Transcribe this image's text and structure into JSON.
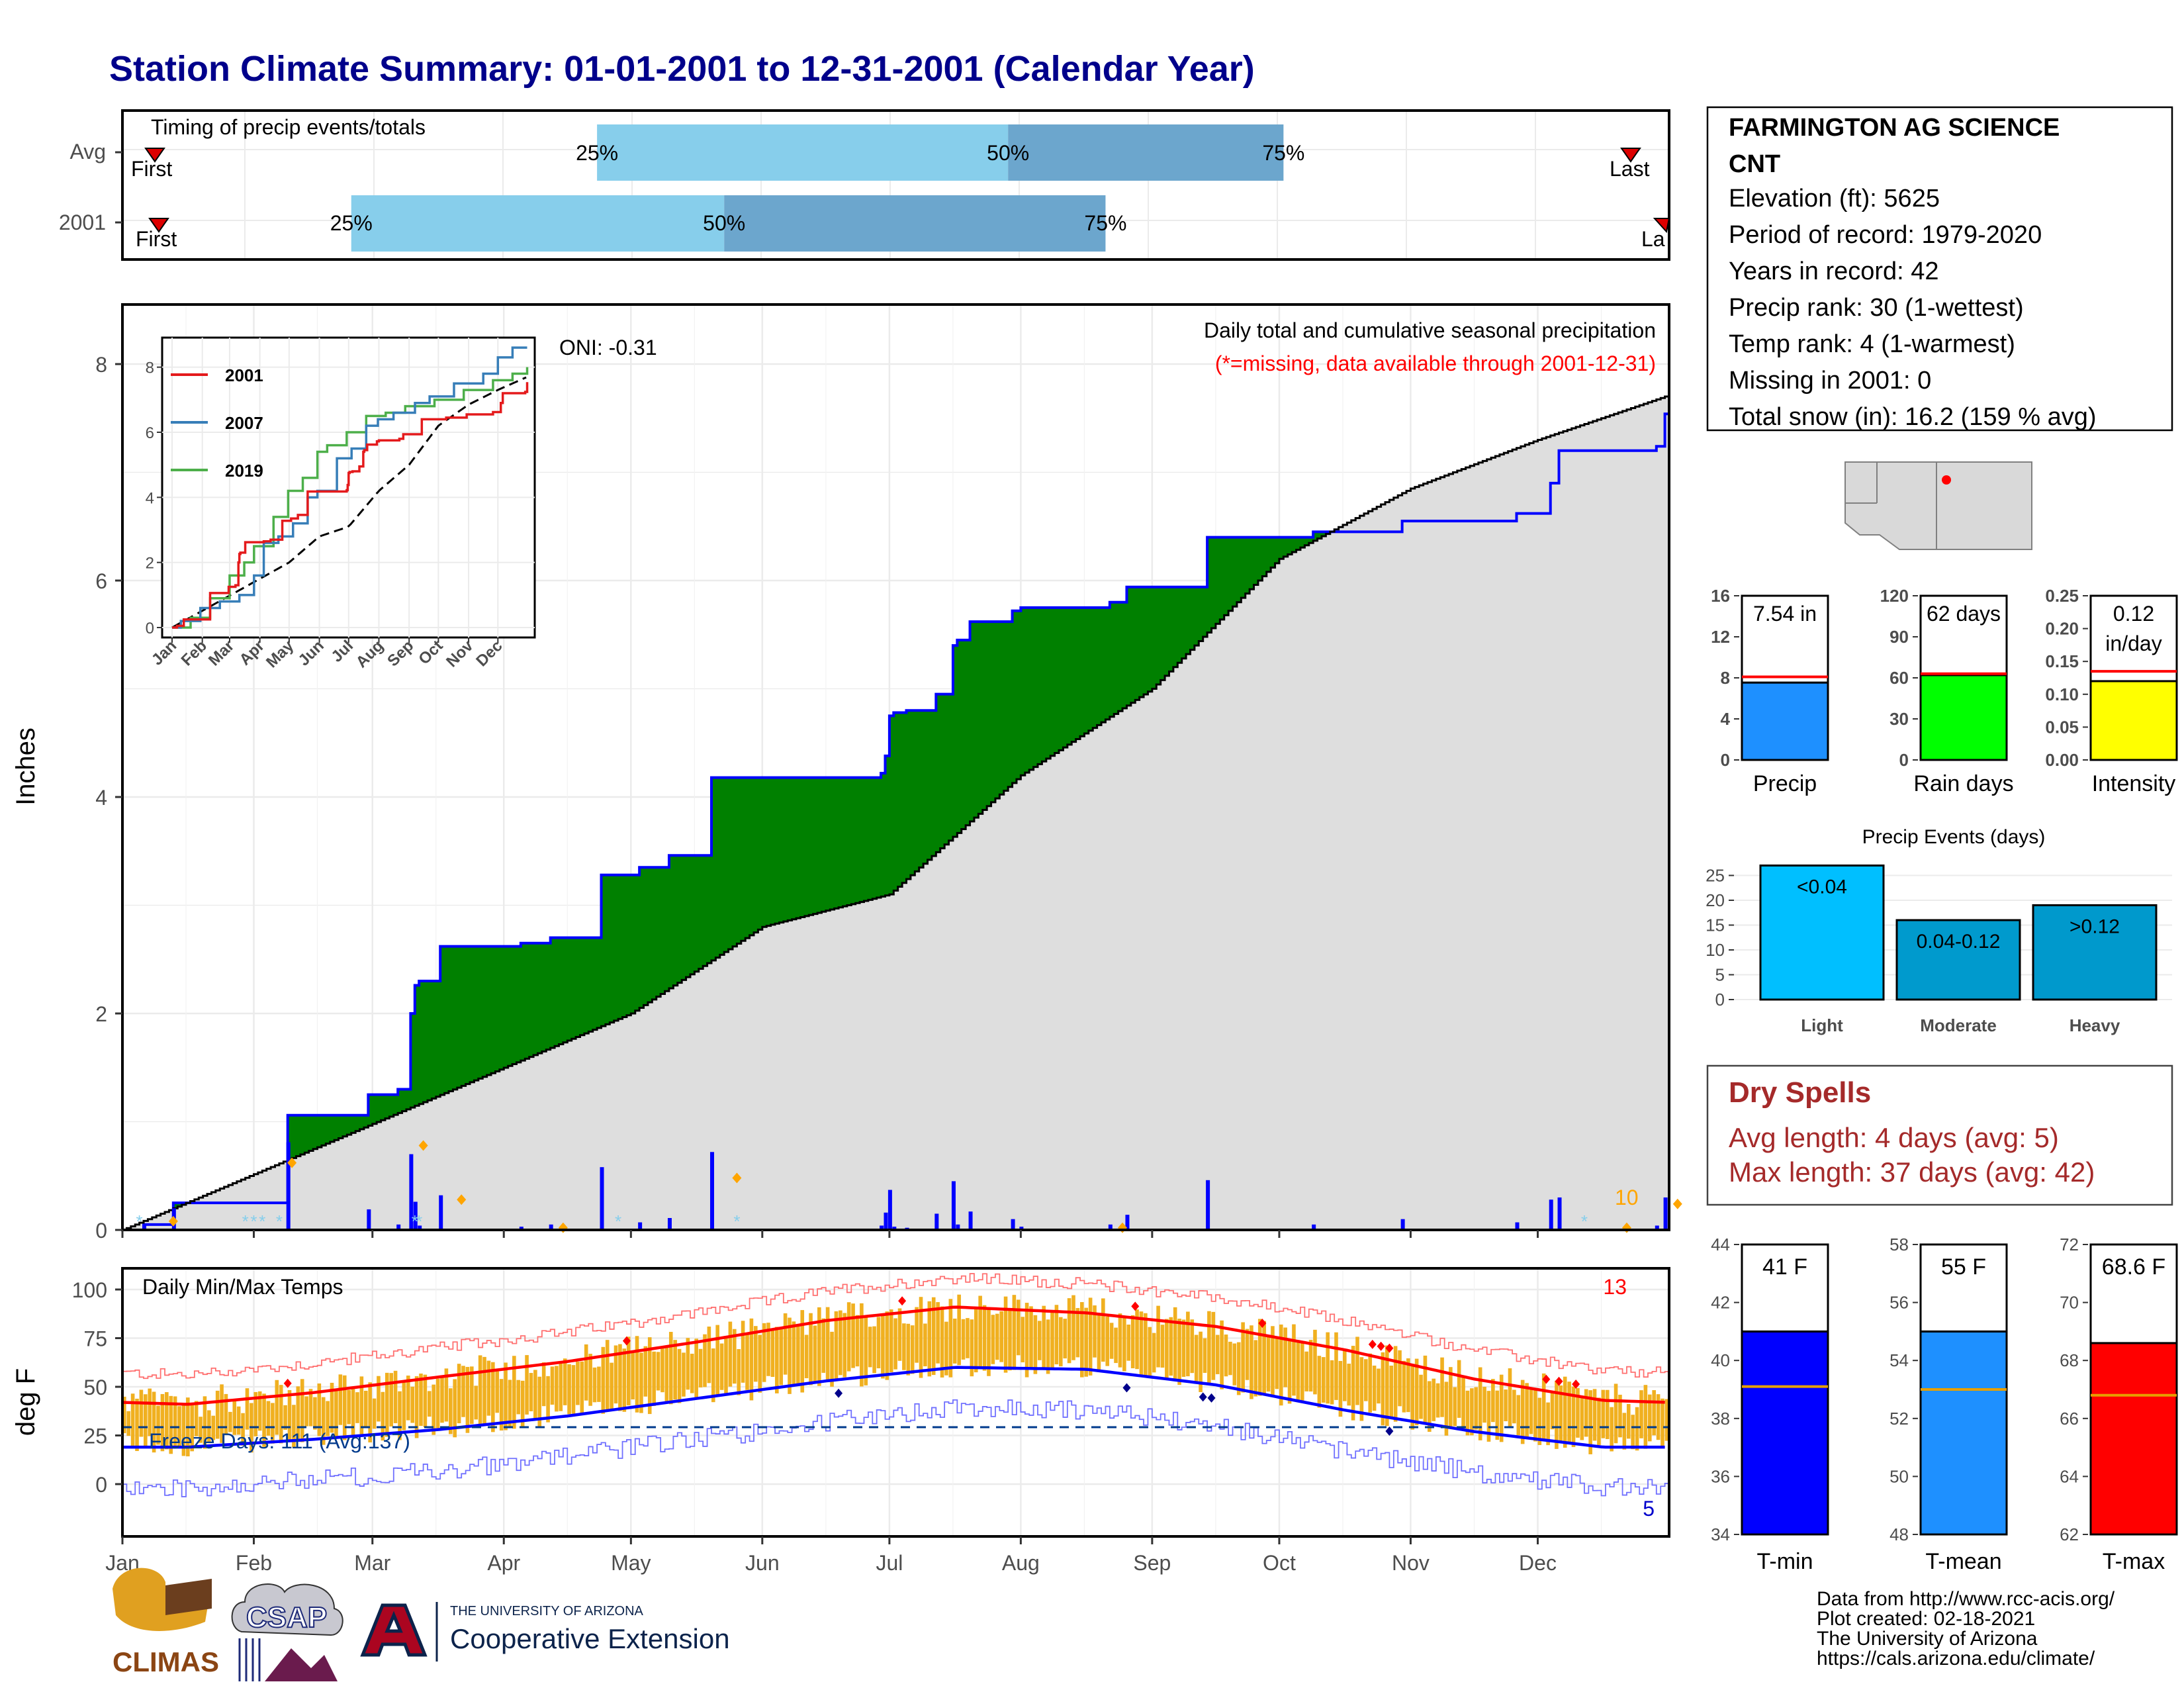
{
  "title": "Station Climate Summary: 01-01-2001 to 12-31-2001 (Calendar Year)",
  "timing": {
    "title": "Timing of precip events/totals",
    "rows": [
      {
        "label": "Avg",
        "first": "First",
        "last": "Last",
        "q25": "25%",
        "q50": "50%",
        "q75": "75%"
      },
      {
        "label": "2001",
        "first": "First",
        "last": "La",
        "q25": "25%",
        "q50": "50%",
        "q75": "75%"
      }
    ]
  },
  "precip": {
    "ylabel": "Inches",
    "oni": "ONI: -0.31",
    "subtitle1": "Daily total and cumulative seasonal precipitation",
    "subtitle2": "(*=missing, data available through 2001-12-31)",
    "count_label": "10"
  },
  "inset": {
    "legend": [
      "2001",
      "2007",
      "2019"
    ],
    "months": [
      "Jan",
      "Feb",
      "Mar",
      "Apr",
      "May",
      "Jun",
      "Jul",
      "Aug",
      "Sep",
      "Oct",
      "Nov",
      "Dec"
    ],
    "yticks": [
      "0",
      "2",
      "4",
      "6",
      "8"
    ]
  },
  "temps": {
    "title": "Daily Min/Max Temps",
    "ylabel": "deg F",
    "freeze": "Freeze Days: 111 (Avg:137)",
    "hot_count": "13",
    "cold_count": "5"
  },
  "months": [
    "Jan",
    "Feb",
    "Mar",
    "Apr",
    "May",
    "Jun",
    "Jul",
    "Aug",
    "Sep",
    "Oct",
    "Nov",
    "Dec"
  ],
  "station": {
    "name1": "FARMINGTON AG SCIENCE",
    "name2": "CNT",
    "lines": [
      "Elevation (ft): 5625",
      "Period of record: 1979-2020",
      "Years in record: 42",
      "Precip rank: 30 (1-wettest)",
      "Temp rank: 4 (1-warmest)",
      "Missing in 2001: 0",
      "Total snow (in): 16.2 (159 % avg)"
    ]
  },
  "mini_bars": [
    {
      "label": "Precip",
      "value": 7.54,
      "value_text": "7.54 in",
      "avg": 8.1,
      "ymax": 16,
      "ticks": [
        "0",
        "4",
        "8",
        "12",
        "16"
      ],
      "color": "#1E90FF"
    },
    {
      "label": "Rain days",
      "value": 62,
      "value_text": "62 days",
      "avg": 63,
      "ymax": 120,
      "ticks": [
        "0",
        "30",
        "60",
        "90",
        "120"
      ],
      "color": "#00FF00"
    },
    {
      "label": "Intensity",
      "value": 0.12,
      "value_text": "0.12\nin/day",
      "avg": 0.135,
      "ymax": 0.25,
      "ticks": [
        "0.00",
        "0.05",
        "0.10",
        "0.15",
        "0.20",
        "0.25"
      ],
      "color": "#FFFF00"
    }
  ],
  "events": {
    "title": "Precip Events (days)",
    "categories": [
      "Light",
      "Moderate",
      "Heavy"
    ],
    "values": [
      27,
      16,
      19
    ],
    "labels": [
      "<0.04",
      "0.04-0.12",
      ">0.12"
    ],
    "colors": [
      "#00BFFF",
      "#009ACD",
      "#0099CC"
    ],
    "yticks": [
      "0",
      "5",
      "10",
      "15",
      "20",
      "25"
    ]
  },
  "dry": {
    "title": "Dry Spells",
    "line1": "Avg length: 4 days (avg: 5)",
    "line2": "Max length: 37 days (avg: 42)"
  },
  "temp_bars": [
    {
      "label": "T-min",
      "value": 41.0,
      "value_text": "41 F",
      "avg": 39.1,
      "ymin": 34,
      "ymax": 44,
      "ticks": [
        "34",
        "36",
        "38",
        "40",
        "42",
        "44"
      ],
      "color": "#0000FF"
    },
    {
      "label": "T-mean",
      "value": 55.0,
      "value_text": "55 F",
      "avg": 53.0,
      "ymin": 48,
      "ymax": 58,
      "ticks": [
        "48",
        "50",
        "52",
        "54",
        "56",
        "58"
      ],
      "color": "#1E90FF"
    },
    {
      "label": "T-max",
      "value": 68.6,
      "value_text": "68.6 F",
      "avg": 66.8,
      "ymin": 62,
      "ymax": 72,
      "ticks": [
        "62",
        "64",
        "66",
        "68",
        "70",
        "72"
      ],
      "color": "#FF0000"
    }
  ],
  "footer": {
    "lines": [
      "Data from http://www.rcc-acis.org/",
      "Plot created: 02-18-2021",
      "The University of Arizona",
      "https://cals.arizona.edu/climate/"
    ],
    "logo1": "CLIMAS",
    "logo2": "CSAP",
    "logo3a": "THE UNIVERSITY OF ARIZONA",
    "logo3b": "Cooperative Extension"
  },
  "colors": {
    "title": "#00008B",
    "cum_green": "#008000",
    "cum_brown": "#7F5100",
    "cum_gray": "#DEDEDE",
    "precip_blue": "#0000FF",
    "temp_bar": "#F0B020",
    "dry_red": "#A52A2A"
  },
  "chart_data": [
    {
      "type": "bar",
      "title": "Timing of precip events/totals",
      "categories": [
        "Avg",
        "2001"
      ],
      "series": [
        {
          "name": "25%",
          "values": [
            "2001-04-23",
            "2001-02-24"
          ]
        },
        {
          "name": "50%",
          "values": [
            "2001-07-29",
            "2001-05-23"
          ]
        },
        {
          "name": "75%",
          "values": [
            "2001-10-02",
            "2001-08-21"
          ]
        }
      ]
    },
    {
      "type": "area",
      "title": "Daily total and cumulative seasonal precipitation",
      "ylabel": "Inches",
      "ylim": [
        0,
        8.5
      ],
      "series": [
        {
          "name": "2001 cumulative",
          "x": [
            "2001-01-01",
            "2001-01-06",
            "2001-01-13",
            "2001-02-08",
            "2001-02-09",
            "2001-02-28",
            "2001-03-07",
            "2001-03-10",
            "2001-03-11",
            "2001-03-12",
            "2001-03-17",
            "2001-04-05",
            "2001-04-12",
            "2001-04-24",
            "2001-05-03",
            "2001-05-10",
            "2001-05-20",
            "2001-06-29",
            "2001-06-30",
            "2001-07-01",
            "2001-07-02",
            "2001-07-05",
            "2001-07-12",
            "2001-07-16",
            "2001-07-17",
            "2001-07-20",
            "2001-07-30",
            "2001-08-01",
            "2001-08-22",
            "2001-08-26",
            "2001-09-14",
            "2001-10-09",
            "2001-10-30",
            "2001-11-26",
            "2001-12-04",
            "2001-12-06",
            "2001-12-29",
            "2001-12-31"
          ],
          "values": [
            0,
            0.05,
            0.25,
            0.25,
            1.06,
            1.25,
            1.3,
            2.0,
            2.26,
            2.3,
            2.62,
            2.65,
            2.7,
            3.28,
            3.35,
            3.46,
            4.18,
            4.22,
            4.38,
            4.75,
            4.78,
            4.8,
            4.95,
            5.4,
            5.45,
            5.62,
            5.72,
            5.75,
            5.8,
            5.94,
            6.4,
            6.45,
            6.55,
            6.62,
            6.9,
            7.2,
            7.24,
            7.54
          ]
        },
        {
          "name": "Average cumulative",
          "x": [
            "2001-01-01",
            "2001-03-01",
            "2001-05-01",
            "2001-06-01",
            "2001-07-01",
            "2001-08-01",
            "2001-09-01",
            "2001-10-01",
            "2001-11-01",
            "2001-12-01",
            "2001-12-31"
          ],
          "values": [
            0,
            0.98,
            2.0,
            2.8,
            3.1,
            4.2,
            5.0,
            6.2,
            6.85,
            7.3,
            7.7
          ]
        }
      ]
    },
    {
      "type": "line",
      "title": "Daily Min/Max Temps",
      "ylabel": "deg F",
      "ylim": [
        -20,
        105
      ],
      "categories": [
        "Jan",
        "Feb",
        "Mar",
        "Apr",
        "May",
        "Jun",
        "Jul",
        "Aug",
        "Sep",
        "Oct",
        "Nov",
        "Dec"
      ],
      "series": [
        {
          "name": "Normal max",
          "values": [
            41,
            47,
            55,
            63,
            73,
            84,
            91,
            88,
            81,
            69,
            54,
            43
          ]
        },
        {
          "name": "Normal min",
          "values": [
            19,
            23,
            28,
            35,
            44,
            53,
            60,
            59,
            51,
            38,
            27,
            19
          ]
        }
      ]
    },
    {
      "type": "bar",
      "title": "Precip Events (days)",
      "categories": [
        "Light",
        "Moderate",
        "Heavy"
      ],
      "values": [
        27,
        16,
        19
      ]
    }
  ]
}
